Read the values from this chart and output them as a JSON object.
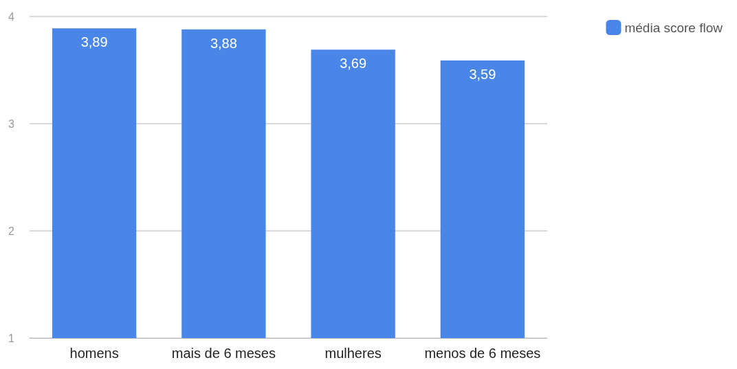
{
  "chart_data": {
    "type": "bar",
    "categories": [
      "homens",
      "mais de 6 meses",
      "mulheres",
      "menos de 6 meses"
    ],
    "series": [
      {
        "name": "média score flow",
        "color": "#4a86e8",
        "values": [
          3.89,
          3.88,
          3.69,
          3.59
        ],
        "value_labels": [
          "3,89",
          "3,88",
          "3,69",
          "3,59"
        ]
      }
    ],
    "ylim": [
      1,
      4
    ],
    "yticks": [
      1,
      2,
      3,
      4
    ],
    "grid": "y",
    "legend": "top right"
  }
}
